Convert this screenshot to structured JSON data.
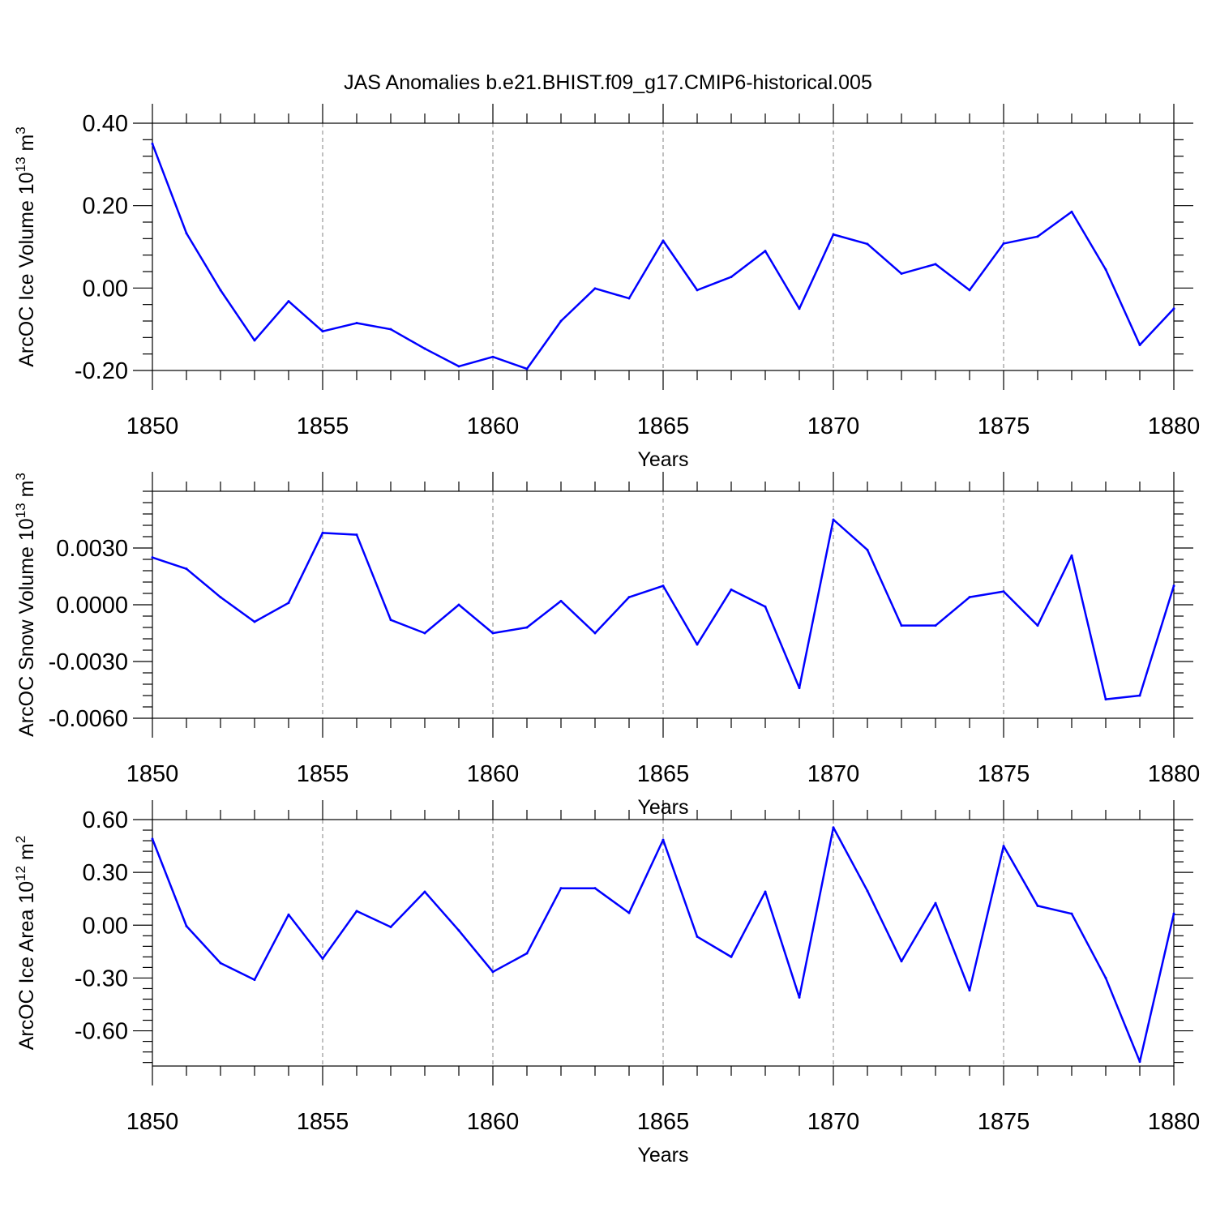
{
  "title": "JAS Anomalies b.e21.BHIST.f09_g17.CMIP6-historical.005",
  "colors": {
    "series": "#0000ff",
    "axes": "#000000",
    "grid": "#808080"
  },
  "chart_data": [
    {
      "type": "line",
      "id": "ice-volume",
      "ylabel": {
        "main": "ArcOC Ice Volume 10",
        "exp": "13",
        "unit": " m",
        "unit_exp": "3"
      },
      "xlabel": "Years",
      "xlim": [
        1850,
        1880
      ],
      "ylim": [
        -0.2,
        0.4
      ],
      "yticks": [
        -0.2,
        0.0,
        0.2,
        0.4
      ],
      "ytick_labels": [
        "-0.20",
        "0.00",
        "0.20",
        "0.40"
      ],
      "xticks": [
        1850,
        1855,
        1860,
        1865,
        1870,
        1875,
        1880
      ],
      "xtick_labels": [
        "1850",
        "1855",
        "1860",
        "1865",
        "1870",
        "1875",
        "1880"
      ],
      "years": [
        1850,
        1851,
        1852,
        1853,
        1854,
        1855,
        1856,
        1857,
        1858,
        1859,
        1860,
        1861,
        1862,
        1863,
        1864,
        1865,
        1866,
        1867,
        1868,
        1869,
        1870,
        1871,
        1872,
        1873,
        1874,
        1875,
        1876,
        1877,
        1878,
        1879,
        1880
      ],
      "values": [
        0.35,
        0.133,
        -0.005,
        -0.127,
        -0.032,
        -0.105,
        -0.085,
        -0.1,
        -0.147,
        -0.19,
        -0.167,
        -0.196,
        -0.08,
        -0.001,
        -0.025,
        0.115,
        -0.005,
        0.027,
        0.09,
        -0.05,
        0.13,
        0.107,
        0.035,
        0.058,
        -0.005,
        0.108,
        0.125,
        0.185,
        0.045,
        -0.138,
        -0.05
      ]
    },
    {
      "type": "line",
      "id": "snow-volume",
      "ylabel": {
        "main": "ArcOC Snow Volume 10",
        "exp": "13",
        "unit": " m",
        "unit_exp": "3"
      },
      "xlabel": "Years",
      "xlim": [
        1850,
        1880
      ],
      "ylim": [
        -0.006,
        0.006
      ],
      "yticks": [
        -0.006,
        -0.003,
        0.0,
        0.003
      ],
      "ytick_labels": [
        "-0.0060",
        "-0.0030",
        "0.0000",
        "0.0030"
      ],
      "xticks": [
        1850,
        1855,
        1860,
        1865,
        1870,
        1875,
        1880
      ],
      "xtick_labels": [
        "1850",
        "1855",
        "1860",
        "1865",
        "1870",
        "1875",
        "1880"
      ],
      "years": [
        1850,
        1851,
        1852,
        1853,
        1854,
        1855,
        1856,
        1857,
        1858,
        1859,
        1860,
        1861,
        1862,
        1863,
        1864,
        1865,
        1866,
        1867,
        1868,
        1869,
        1870,
        1871,
        1872,
        1873,
        1874,
        1875,
        1876,
        1877,
        1878,
        1879,
        1880
      ],
      "values": [
        0.0025,
        0.0019,
        0.0004,
        -0.0009,
        0.0001,
        0.0038,
        0.0037,
        -0.0008,
        -0.0015,
        0.0,
        -0.0015,
        -0.0012,
        0.0002,
        -0.0015,
        0.0004,
        0.001,
        -0.0021,
        0.0008,
        -0.0001,
        -0.0044,
        0.0045,
        0.0029,
        -0.0011,
        -0.0011,
        0.0004,
        0.0007,
        -0.0011,
        0.0026,
        -0.005,
        -0.0048,
        0.001
      ]
    },
    {
      "type": "line",
      "id": "ice-area",
      "ylabel": {
        "main": "ArcOC Ice Area 10",
        "exp": "12",
        "unit": " m",
        "unit_exp": "2"
      },
      "xlabel": "Years",
      "xlim": [
        1850,
        1880
      ],
      "ylim": [
        -0.8,
        0.6
      ],
      "yticks": [
        -0.6,
        -0.3,
        0.0,
        0.3,
        0.6
      ],
      "ytick_labels": [
        "-0.60",
        "-0.30",
        "0.00",
        "0.30",
        "0.60"
      ],
      "xticks": [
        1850,
        1855,
        1860,
        1865,
        1870,
        1875,
        1880
      ],
      "xtick_labels": [
        "1850",
        "1855",
        "1860",
        "1865",
        "1870",
        "1875",
        "1880"
      ],
      "years": [
        1850,
        1851,
        1852,
        1853,
        1854,
        1855,
        1856,
        1857,
        1858,
        1859,
        1860,
        1861,
        1862,
        1863,
        1864,
        1865,
        1866,
        1867,
        1868,
        1869,
        1870,
        1871,
        1872,
        1873,
        1874,
        1875,
        1876,
        1877,
        1878,
        1879,
        1880
      ],
      "values": [
        0.49,
        -0.005,
        -0.215,
        -0.31,
        0.06,
        -0.19,
        0.08,
        -0.01,
        0.19,
        -0.03,
        -0.265,
        -0.16,
        0.21,
        0.21,
        0.07,
        0.485,
        -0.065,
        -0.18,
        0.19,
        -0.41,
        0.555,
        0.195,
        -0.205,
        0.125,
        -0.37,
        0.45,
        0.11,
        0.065,
        -0.3,
        -0.775,
        0.065
      ]
    }
  ]
}
